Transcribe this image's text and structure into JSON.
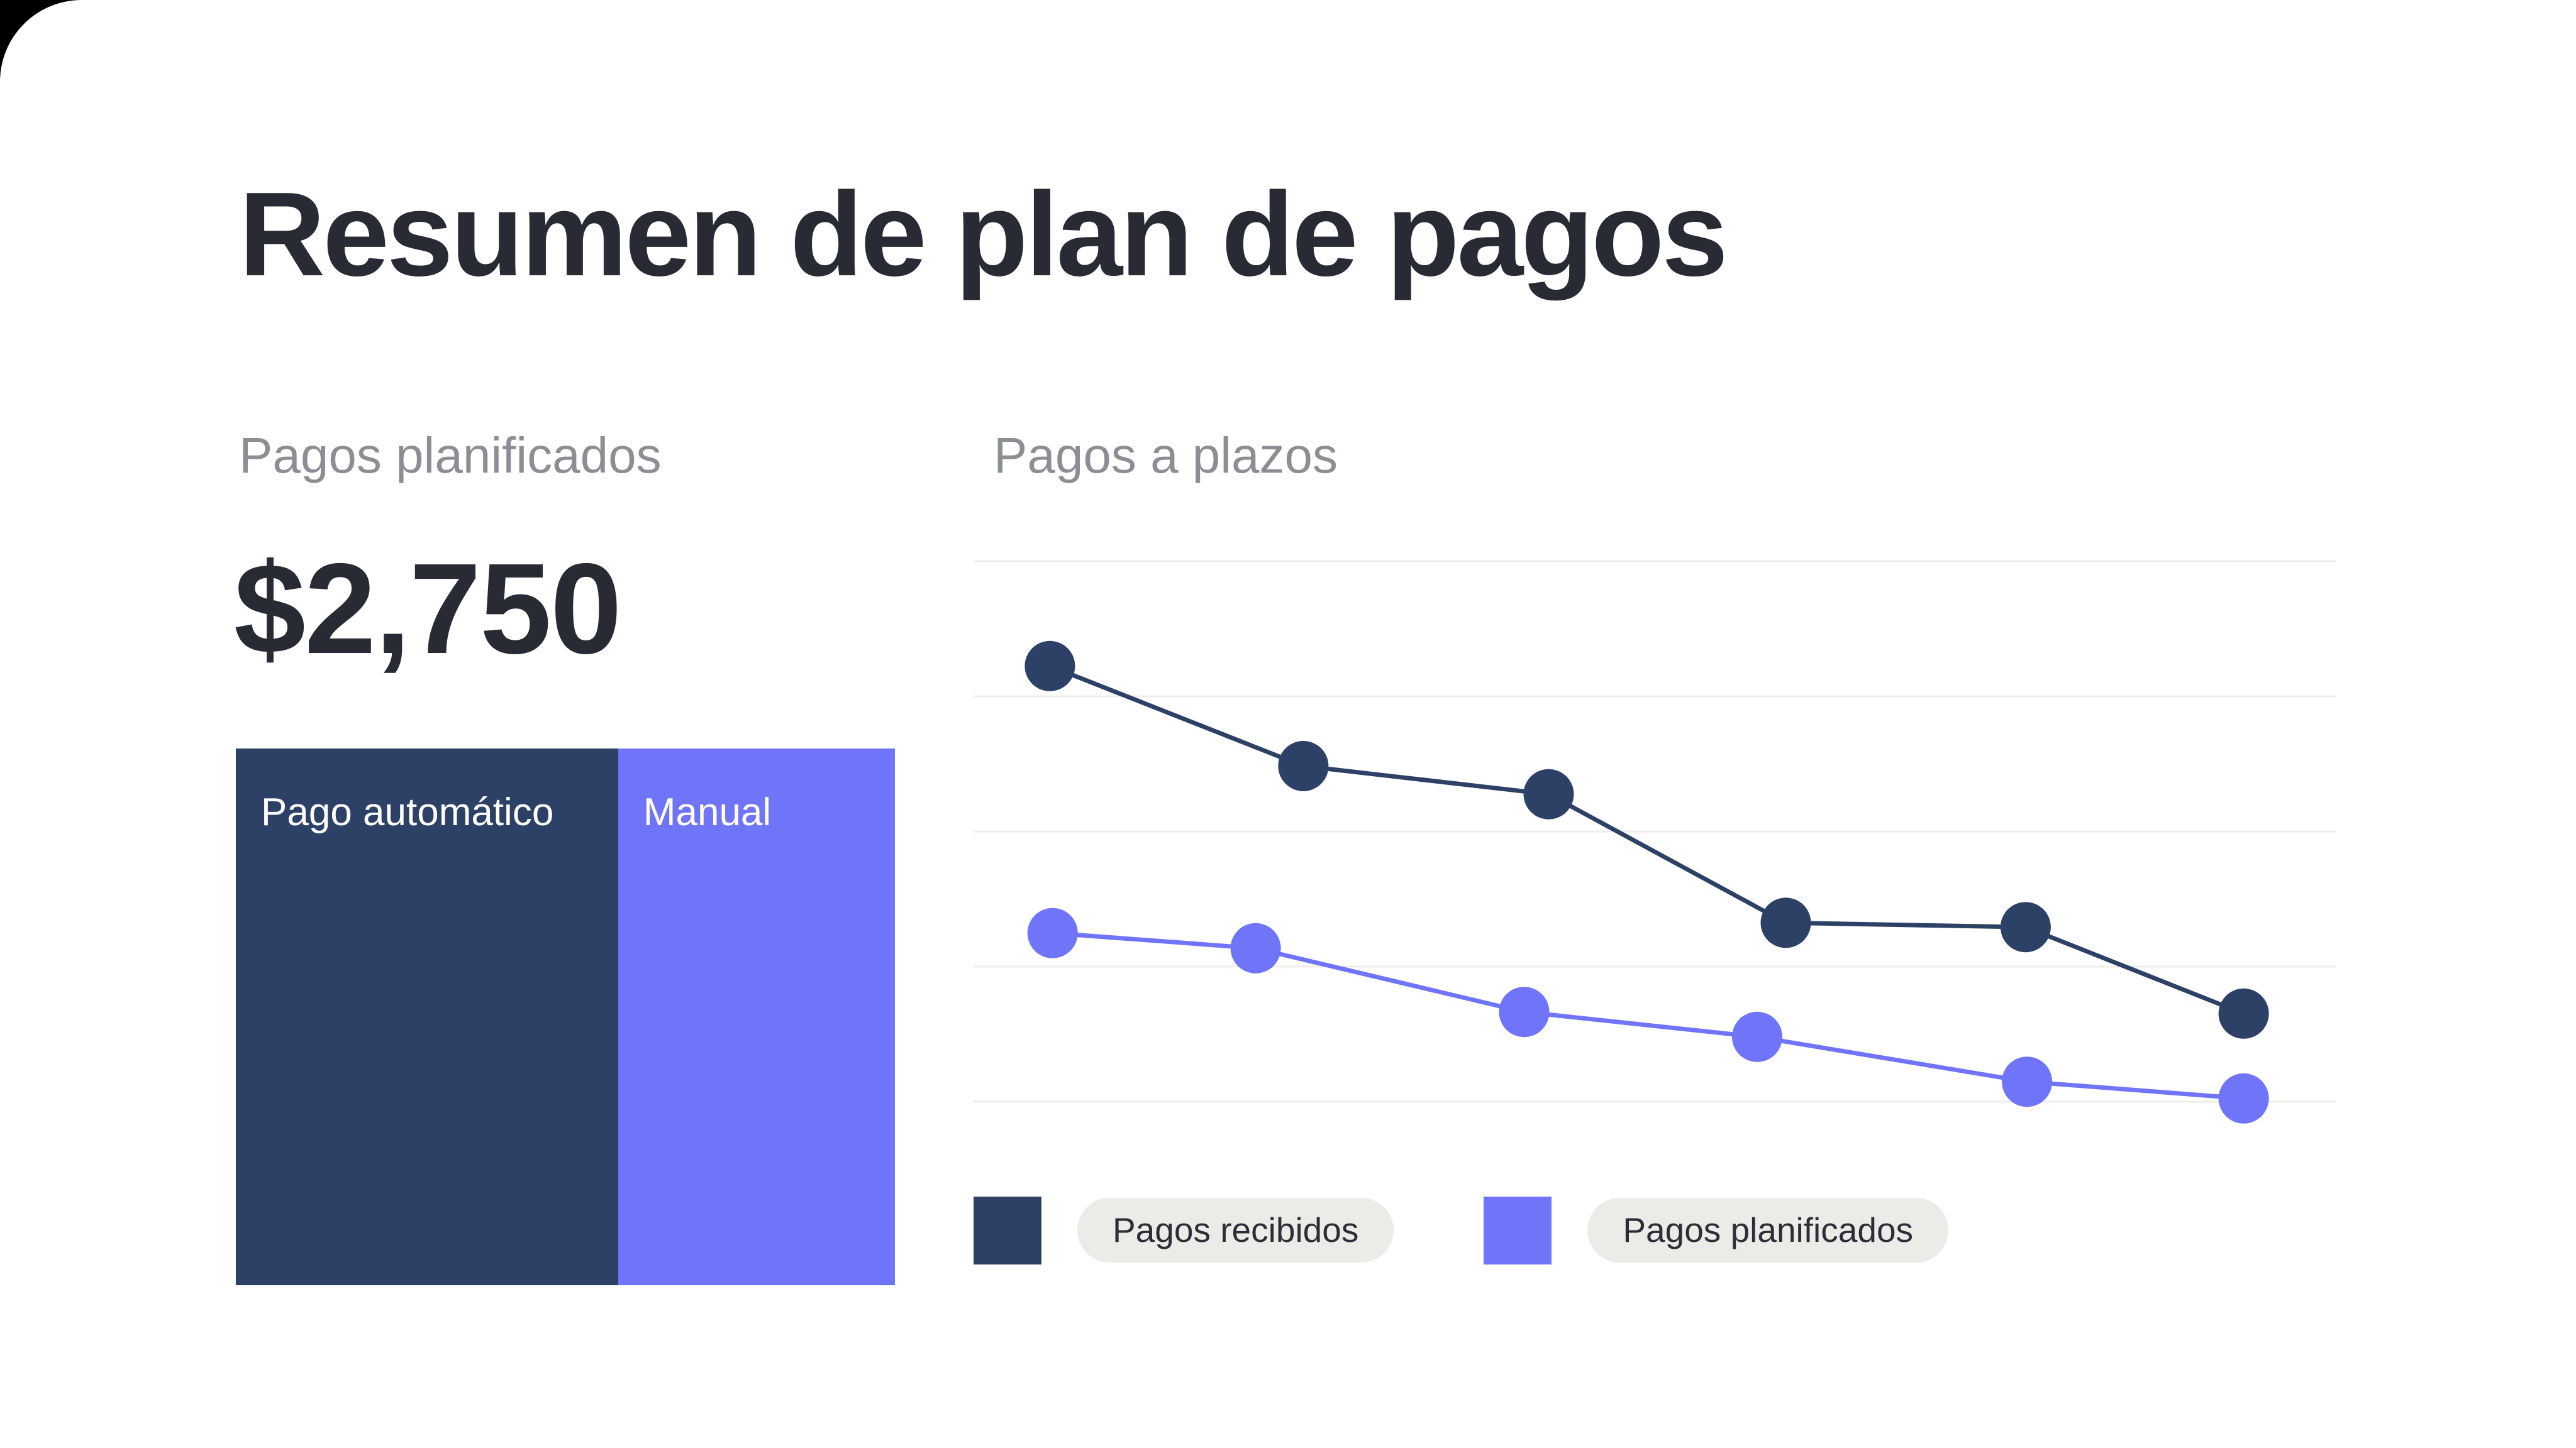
{
  "page": {
    "title": "Resumen de plan de pagos"
  },
  "summary": {
    "label": "Pagos planificados",
    "value": "$2,750"
  },
  "installments": {
    "label": "Pagos a plazos"
  },
  "colors": {
    "navy": "#2d4166",
    "purple": "#7074f8",
    "ink": "#282b33",
    "gray": "#8b8f94",
    "pill": "#ebebe7",
    "grid": "#efeeeb",
    "page": "#000000",
    "card": "#ffffff"
  },
  "chart_data": [
    {
      "type": "line",
      "title": "Pagos a plazos",
      "x": [
        1,
        2,
        3,
        4,
        5,
        6
      ],
      "xlabel": "",
      "ylabel": "",
      "ylim": [
        0,
        100
      ],
      "grid": true,
      "n_gridlines": 5,
      "legend_position": "bottom",
      "marker_style": "filled-circle",
      "series": [
        {
          "name": "Pagos recibidos",
          "color": "#2d4166",
          "x_pct": [
            5.6,
            24.2,
            42.2,
            59.6,
            77.2,
            93.2
          ],
          "values": [
            80.6,
            62.1,
            56.9,
            33.1,
            32.3,
            16.3
          ]
        },
        {
          "name": "Pagos planificados",
          "color": "#7074f8",
          "x_pct": [
            5.8,
            20.7,
            40.4,
            57.5,
            77.3,
            93.2
          ],
          "values": [
            31.2,
            28.4,
            16.6,
            12.0,
            3.7,
            0.6
          ]
        }
      ]
    },
    {
      "type": "bar",
      "variant": "stacked-horizontal",
      "title": "Pagos planificados",
      "total_label": "$2,750",
      "categories": [
        "Pago automático",
        "Manual"
      ],
      "values": [
        58,
        42
      ],
      "unit": "percent-of-width",
      "colors": [
        "#2d4166",
        "#7074f8"
      ]
    }
  ]
}
